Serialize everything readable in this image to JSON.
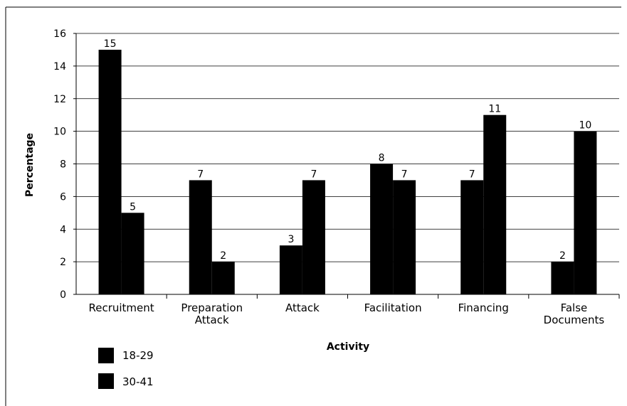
{
  "chart_data": {
    "type": "bar",
    "xlabel": "Activity",
    "ylabel": "Percentage",
    "ylim": [
      0,
      16
    ],
    "yticks": [
      0,
      2,
      4,
      6,
      8,
      10,
      12,
      14,
      16
    ],
    "grid": true,
    "legend_position": "bottom-left",
    "categories": [
      [
        "Recruitment"
      ],
      [
        "Preparation",
        "Attack"
      ],
      [
        "Attack"
      ],
      [
        "Facilitation"
      ],
      [
        "Financing"
      ],
      [
        "False",
        "Documents"
      ]
    ],
    "series": [
      {
        "name": "18-29",
        "values": [
          15,
          7,
          3,
          8,
          7,
          2
        ],
        "color": "#000000"
      },
      {
        "name": "30-41",
        "values": [
          5,
          2,
          7,
          7,
          11,
          10
        ],
        "color": "#000000"
      }
    ]
  }
}
